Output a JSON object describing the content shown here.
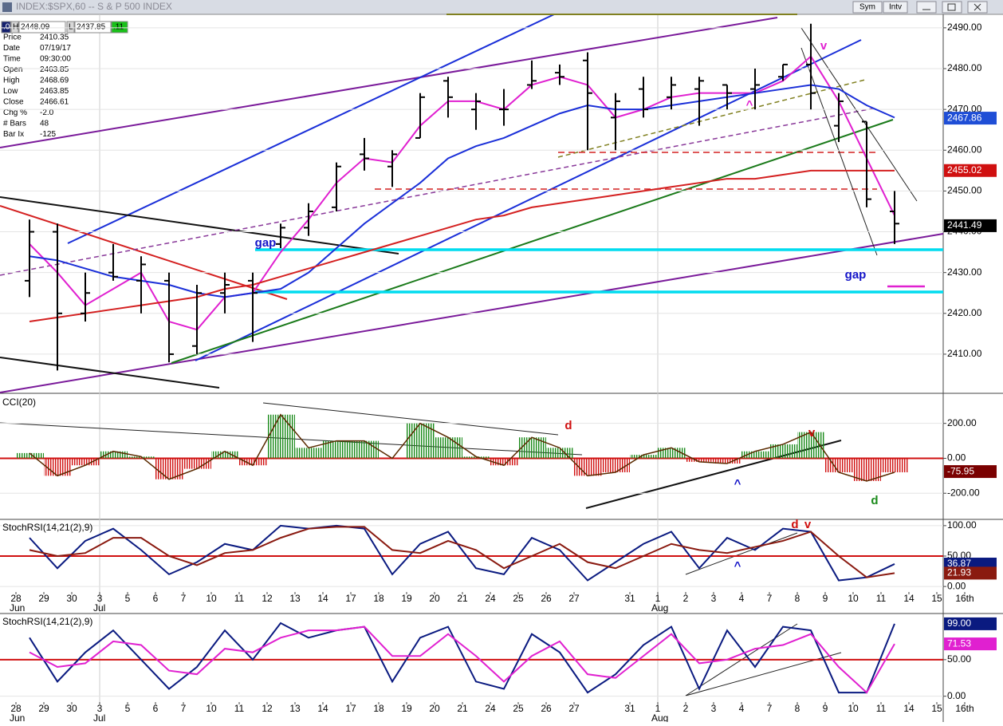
{
  "window": {
    "title": "INDEX:$SPX,60 -- S & P 500 INDEX",
    "buttons": [
      "Sym",
      "Intv"
    ]
  },
  "quote_bar": [
    ".04",
    "H",
    "2448.09",
    "L",
    "2437.85",
    ".11"
  ],
  "info_panel": {
    "rows": [
      [
        "Price",
        "2410.35"
      ],
      [
        "Date",
        "07/19/17"
      ],
      [
        "Time",
        "09:30:00"
      ],
      [
        "Open",
        "2463.85"
      ],
      [
        "High",
        "2468.69"
      ],
      [
        "Low",
        "2463.85"
      ],
      [
        "Close",
        "2466.61"
      ],
      [
        "Chg %",
        "-2.0"
      ],
      [
        "# Bars",
        "48"
      ],
      [
        "Bar Ix",
        "-125"
      ]
    ]
  },
  "chart_data": [
    {
      "type": "ohlc",
      "color": "#000000",
      "open": [
        2428,
        2440,
        2420,
        2430,
        2428,
        2428,
        2412,
        2425,
        2428,
        2437,
        2441,
        2446,
        2459,
        2456,
        2463,
        2477,
        2470,
        2470,
        2476,
        2479,
        2482,
        2468,
        2475,
        2473,
        2475,
        2476,
        2475,
        2478,
        2481,
        2466,
        2467,
        2445,
        null,
        null,
        null
      ],
      "high": [
        2443,
        2442,
        2430,
        2437,
        2434,
        2430,
        2427,
        2430,
        2430,
        2442,
        2447,
        2457,
        2463,
        2460,
        2474,
        2478,
        2474,
        2475,
        2482,
        2481,
        2484,
        2474,
        2478,
        2478,
        2478,
        2476,
        2480,
        2481,
        2491,
        2474,
        2467,
        2450,
        null,
        null,
        null
      ],
      "low": [
        2424,
        2406,
        2418,
        2428,
        2420,
        2408,
        2410,
        2420,
        2413,
        2436,
        2439,
        2445,
        2455,
        2451,
        2463,
        2468,
        2465,
        2466,
        2475,
        2476,
        2460,
        2460,
        2468,
        2470,
        2466,
        2470,
        2470,
        2477,
        2470,
        2462,
        2446,
        2437,
        null,
        null,
        null
      ],
      "close": [
        2440,
        2420,
        2425,
        2429,
        2432,
        2410,
        2425,
        2427,
        2425,
        2441,
        2445,
        2456,
        2458,
        2459,
        2473,
        2473,
        2472,
        2470,
        2477,
        2478,
        2474,
        2472,
        2470,
        2476,
        2477,
        2474,
        2476,
        2481,
        2474,
        2472,
        2448,
        2442,
        null,
        null,
        null
      ],
      "overlays": [
        {
          "color": "#e020d0",
          "values": [
            2437,
            2430,
            2422,
            2426,
            2430,
            2418,
            2416,
            2424,
            2425,
            2435,
            2443,
            2452,
            2458,
            2457,
            2466,
            2472,
            2472,
            2470,
            2476,
            2478,
            2476,
            2468,
            2470,
            2473,
            2474,
            2474,
            2474,
            2477,
            2483,
            2472,
            2458,
            2444,
            null,
            null,
            null
          ]
        },
        {
          "color": "#1a2fd8",
          "values": [
            2434,
            2433,
            2431,
            2429,
            2428,
            2427,
            2425,
            2424,
            2425,
            2426,
            2430,
            2436,
            2442,
            2447,
            2452,
            2458,
            2461,
            2463,
            2466,
            2469,
            2471,
            2470,
            2470,
            2471,
            2472,
            2473,
            2474,
            2475,
            2476,
            2475,
            2471,
            2468,
            null,
            null,
            null
          ]
        },
        {
          "color": "#d42020",
          "values": [
            2418,
            2419,
            2420,
            2421,
            2422,
            2423,
            2424,
            2426,
            2427,
            2429,
            2431,
            2433,
            2435,
            2437,
            2439,
            2441,
            2443,
            2444,
            2446,
            2447,
            2448,
            2449,
            2450,
            2451,
            2452,
            2453,
            2453,
            2454,
            2455,
            2455,
            2455,
            2455,
            null,
            null,
            null
          ]
        }
      ],
      "ylim": [
        2400.6,
        2493.3
      ],
      "yticks": [
        {
          "value": 2410,
          "label": "2410.00"
        },
        {
          "value": 2420,
          "label": "2420.00"
        },
        {
          "value": 2430,
          "label": "2430.00"
        },
        {
          "value": 2440,
          "label": "2440.00"
        },
        {
          "value": 2450,
          "label": "2450.00"
        },
        {
          "value": 2460,
          "label": "2460.00"
        },
        {
          "value": 2470,
          "label": "2470.00"
        },
        {
          "value": 2480,
          "label": "2480.00"
        },
        {
          "value": 2490,
          "label": "2490.00"
        }
      ],
      "tags": [
        {
          "value": 2467.86,
          "color": "#1f4ed6"
        },
        {
          "value": 2455.02,
          "color": "#d01010"
        },
        {
          "value": 2441.49,
          "color": "#000000"
        }
      ],
      "annotations": [
        {
          "text": "gap",
          "color": "#1414c8"
        },
        {
          "text": "gap",
          "color": "#1414c8"
        },
        {
          "text": "v",
          "color": "#e020d0"
        },
        {
          "text": "^",
          "color": "#e020d0"
        }
      ]
    },
    {
      "type": "cci",
      "title": "CCI(20)",
      "up_color": "#1a8a1a",
      "down_color": "#d01010",
      "line_color": "#5a2a00",
      "values": [
        30,
        -100,
        -40,
        40,
        10,
        -120,
        -60,
        40,
        -40,
        250,
        60,
        100,
        100,
        0,
        200,
        120,
        10,
        -40,
        120,
        60,
        -100,
        -80,
        20,
        60,
        -20,
        -30,
        40,
        80,
        150,
        -80,
        -130,
        -80,
        null,
        null,
        null
      ],
      "ylim": [
        -345,
        363
      ],
      "yticks": [
        {
          "value": 200,
          "label": "200.00"
        },
        {
          "value": 0,
          "label": "0.00"
        },
        {
          "value": -200,
          "label": "-200.00"
        }
      ],
      "tags": [
        {
          "value": -75.95,
          "color": "#7a0000"
        }
      ],
      "annotations": [
        {
          "text": "d",
          "color": "#d01010"
        },
        {
          "text": "v",
          "color": "#d01010"
        },
        {
          "text": "^",
          "color": "#1414c8"
        },
        {
          "text": "d",
          "color": "#1a8a1a"
        }
      ]
    },
    {
      "type": "line",
      "title": "StochRSI(14,21(2),9)",
      "categories": [
        "28",
        "29",
        "30",
        "3",
        "5",
        "6",
        "7",
        "10",
        "11",
        "12",
        "13",
        "14",
        "17",
        "18",
        "19",
        "20",
        "21",
        "24",
        "25",
        "26",
        "27",
        null,
        "31",
        "1",
        "2",
        "3",
        "4",
        "7",
        "8",
        "9",
        "10",
        "11",
        "14",
        "15",
        "16th"
      ],
      "month_labels": [
        "Jun",
        "Jul",
        "Aug"
      ],
      "series": [
        {
          "color": "#0a1a80",
          "values": [
            80,
            30,
            75,
            95,
            60,
            20,
            40,
            70,
            60,
            100,
            95,
            100,
            95,
            20,
            70,
            90,
            30,
            20,
            80,
            60,
            10,
            40,
            70,
            90,
            30,
            80,
            60,
            95,
            90,
            10,
            15,
            37,
            null,
            null,
            null
          ]
        },
        {
          "color": "#8a1a10",
          "values": [
            60,
            50,
            55,
            80,
            80,
            50,
            35,
            55,
            60,
            80,
            95,
            98,
            98,
            60,
            55,
            75,
            60,
            30,
            50,
            70,
            40,
            30,
            50,
            70,
            60,
            55,
            65,
            75,
            90,
            50,
            15,
            22,
            null,
            null,
            null
          ]
        }
      ],
      "ylim": [
        -9,
        109
      ],
      "yticks": [
        {
          "value": 100,
          "label": "100.00"
        },
        {
          "value": 50,
          "label": "50.00"
        },
        {
          "value": 0,
          "label": "0.00"
        }
      ],
      "tags": [
        {
          "value": 36.87,
          "color": "#0a1a80"
        },
        {
          "value": 21.93,
          "color": "#8a1a10"
        }
      ],
      "annotations": [
        {
          "text": "^",
          "color": "#1414c8"
        },
        {
          "text": "d",
          "color": "#d01010"
        },
        {
          "text": "v",
          "color": "#d01010"
        }
      ]
    },
    {
      "type": "line",
      "title": "StochRSI(14,21(2),9)",
      "categories": [
        "28",
        "29",
        "30",
        "3",
        "5",
        "6",
        "7",
        "10",
        "11",
        "12",
        "13",
        "14",
        "17",
        "18",
        "19",
        "20",
        "21",
        "24",
        "25",
        "26",
        "27",
        null,
        "31",
        "1",
        "2",
        "3",
        "4",
        "7",
        "8",
        "9",
        "10",
        "11",
        "14",
        "15",
        "16th"
      ],
      "month_labels": [
        "Jun",
        "Jul",
        "Aug"
      ],
      "series": [
        {
          "color": "#0a1a80",
          "values": [
            80,
            20,
            60,
            90,
            50,
            10,
            40,
            90,
            50,
            100,
            80,
            90,
            95,
            20,
            80,
            95,
            20,
            10,
            85,
            60,
            5,
            30,
            70,
            95,
            10,
            90,
            40,
            95,
            90,
            5,
            5,
            99,
            null,
            null,
            null
          ]
        },
        {
          "color": "#e020d0",
          "values": [
            60,
            40,
            45,
            75,
            70,
            35,
            30,
            65,
            60,
            80,
            90,
            90,
            95,
            55,
            55,
            85,
            55,
            20,
            55,
            75,
            30,
            25,
            55,
            85,
            45,
            50,
            65,
            70,
            85,
            40,
            5,
            71.53,
            null,
            null,
            null
          ]
        }
      ],
      "ylim": [
        -8,
        112
      ],
      "yticks": [
        {
          "value": 50,
          "label": "50.00"
        },
        {
          "value": 0,
          "label": "0.00"
        }
      ],
      "tags": [
        {
          "value": 99,
          "label": "99.00",
          "color": "#0a1a80"
        },
        {
          "value": 71.53,
          "color": "#e020d0"
        }
      ],
      "annotations": []
    }
  ]
}
